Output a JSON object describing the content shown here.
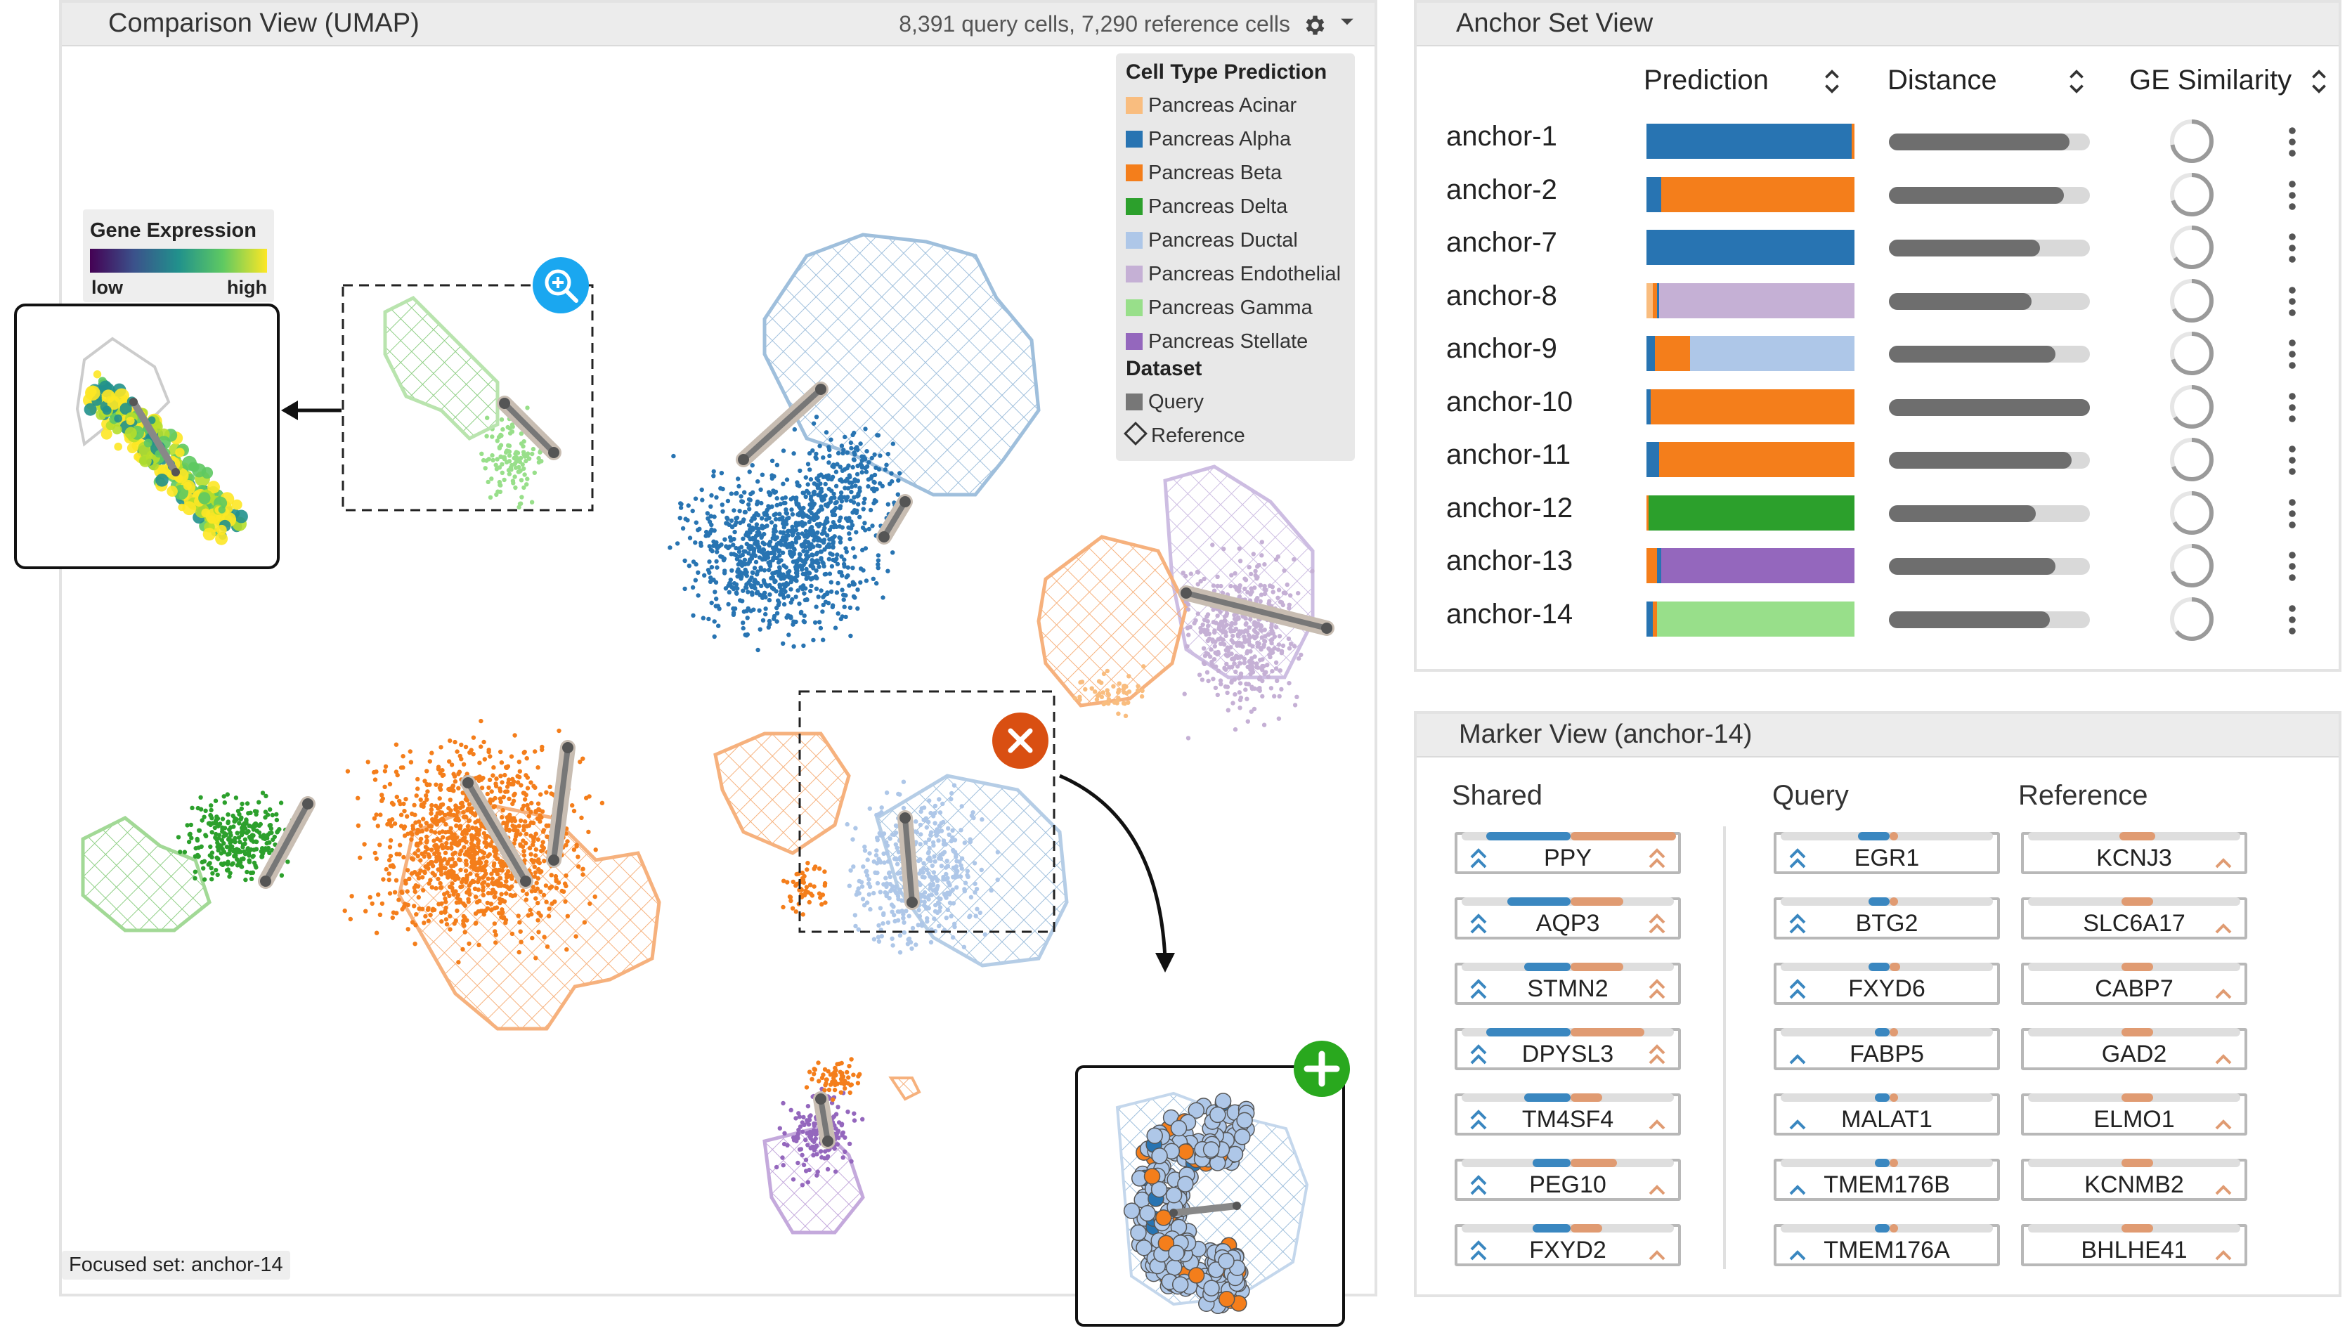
{
  "comparison_view": {
    "title": "Comparison View (UMAP)",
    "cell_counts": "8,391 query cells, 7,290 reference cells",
    "settings_icon": "gear-icon",
    "focused_set": "Focused set: anchor-14",
    "legend": {
      "cell_type_header": "Cell Type Prediction",
      "items": [
        {
          "label": "Pancreas Acinar",
          "color": "#f9bd7f"
        },
        {
          "label": "Pancreas Alpha",
          "color": "#2874b2"
        },
        {
          "label": "Pancreas Beta",
          "color": "#f47e1b"
        },
        {
          "label": "Pancreas Delta",
          "color": "#2ca02c"
        },
        {
          "label": "Pancreas Ductal",
          "color": "#aec7e8"
        },
        {
          "label": "Pancreas Endothelial",
          "color": "#c5b0d5"
        },
        {
          "label": "Pancreas Gamma",
          "color": "#98df8a"
        },
        {
          "label": "Pancreas Stellate",
          "color": "#9467bd"
        }
      ],
      "dataset_header": "Dataset",
      "query_label": "Query",
      "reference_label": "Reference"
    },
    "gene_expression": {
      "title": "Gene Expression",
      "low": "low",
      "high": "high"
    },
    "zoom_icon": "zoom-in-icon",
    "remove_icon": "close-circle-icon",
    "add_icon": "plus-circle-icon"
  },
  "anchor_set_view": {
    "title": "Anchor Set View",
    "columns": [
      "Prediction",
      "Distance",
      "GE Similarity"
    ],
    "anchors": [
      {
        "name": "anchor-1",
        "prediction": [
          {
            "color": "#2874b2",
            "frac": 0.985
          },
          {
            "color": "#f47e1b",
            "frac": 0.015
          }
        ],
        "distance": 0.9,
        "similarity": 0.72
      },
      {
        "name": "anchor-2",
        "prediction": [
          {
            "color": "#2874b2",
            "frac": 0.07
          },
          {
            "color": "#f47e1b",
            "frac": 0.93
          }
        ],
        "distance": 0.87,
        "similarity": 0.7
      },
      {
        "name": "anchor-7",
        "prediction": [
          {
            "color": "#2874b2",
            "frac": 1.0
          }
        ],
        "distance": 0.75,
        "similarity": 0.66
      },
      {
        "name": "anchor-8",
        "prediction": [
          {
            "color": "#f9bd7f",
            "frac": 0.03
          },
          {
            "color": "#f47e1b",
            "frac": 0.02
          },
          {
            "color": "#2874b2",
            "frac": 0.01
          },
          {
            "color": "#c5b0d5",
            "frac": 0.94
          }
        ],
        "distance": 0.71,
        "similarity": 0.68
      },
      {
        "name": "anchor-9",
        "prediction": [
          {
            "color": "#2874b2",
            "frac": 0.04
          },
          {
            "color": "#f47e1b",
            "frac": 0.17
          },
          {
            "color": "#aec7e8",
            "frac": 0.79
          }
        ],
        "distance": 0.83,
        "similarity": 0.7
      },
      {
        "name": "anchor-10",
        "prediction": [
          {
            "color": "#2874b2",
            "frac": 0.02
          },
          {
            "color": "#f47e1b",
            "frac": 0.98
          }
        ],
        "distance": 1.0,
        "similarity": 0.66
      },
      {
        "name": "anchor-11",
        "prediction": [
          {
            "color": "#2874b2",
            "frac": 0.06
          },
          {
            "color": "#f47e1b",
            "frac": 0.94
          }
        ],
        "distance": 0.91,
        "similarity": 0.69
      },
      {
        "name": "anchor-12",
        "prediction": [
          {
            "color": "#f47e1b",
            "frac": 0.01
          },
          {
            "color": "#2ca02c",
            "frac": 0.99
          }
        ],
        "distance": 0.73,
        "similarity": 0.67
      },
      {
        "name": "anchor-13",
        "prediction": [
          {
            "color": "#f47e1b",
            "frac": 0.05
          },
          {
            "color": "#2874b2",
            "frac": 0.02
          },
          {
            "color": "#9467bd",
            "frac": 0.93
          }
        ],
        "distance": 0.83,
        "similarity": 0.7
      },
      {
        "name": "anchor-14",
        "prediction": [
          {
            "color": "#2874b2",
            "frac": 0.03
          },
          {
            "color": "#f47e1b",
            "frac": 0.02
          },
          {
            "color": "#98df8a",
            "frac": 0.95
          }
        ],
        "distance": 0.8,
        "similarity": 0.64
      }
    ]
  },
  "marker_view": {
    "title": "Marker View (anchor-14)",
    "groups": {
      "shared": {
        "label": "Shared",
        "markers": [
          {
            "name": "PPY",
            "q": 0.4,
            "r": 0.5
          },
          {
            "name": "AQP3",
            "q": 0.3,
            "r": 0.25
          },
          {
            "name": "STMN2",
            "q": 0.22,
            "r": 0.25
          },
          {
            "name": "DPYSL3",
            "q": 0.4,
            "r": 0.35
          },
          {
            "name": "TM4SF4",
            "q": 0.22,
            "r": 0.15
          },
          {
            "name": "PEG10",
            "q": 0.18,
            "r": 0.22
          },
          {
            "name": "FXYD2",
            "q": 0.18,
            "r": 0.15
          }
        ]
      },
      "query": {
        "label": "Query",
        "markers": [
          {
            "name": "EGR1",
            "q": 0.15,
            "r": 0.02
          },
          {
            "name": "BTG2",
            "q": 0.1,
            "r": 0.03
          },
          {
            "name": "FXYD6",
            "q": 0.1,
            "r": 0.05
          },
          {
            "name": "FABP5",
            "q": 0.07,
            "r": 0.02
          },
          {
            "name": "MALAT1",
            "q": 0.07,
            "r": 0.02
          },
          {
            "name": "TMEM176B",
            "q": 0.07,
            "r": 0.03
          },
          {
            "name": "TMEM176A",
            "q": 0.07,
            "r": 0.03
          }
        ]
      },
      "reference": {
        "label": "Reference",
        "markers": [
          {
            "name": "KCNJ3",
            "q": 0.0,
            "r": 0.17
          },
          {
            "name": "SLC6A17",
            "q": 0.0,
            "r": 0.15
          },
          {
            "name": "CABP7",
            "q": 0.0,
            "r": 0.15
          },
          {
            "name": "GAD2",
            "q": 0.0,
            "r": 0.15
          },
          {
            "name": "ELMO1",
            "q": 0.0,
            "r": 0.15
          },
          {
            "name": "KCNMB2",
            "q": 0.0,
            "r": 0.15
          },
          {
            "name": "BHLHE41",
            "q": 0.0,
            "r": 0.15
          }
        ]
      }
    }
  }
}
